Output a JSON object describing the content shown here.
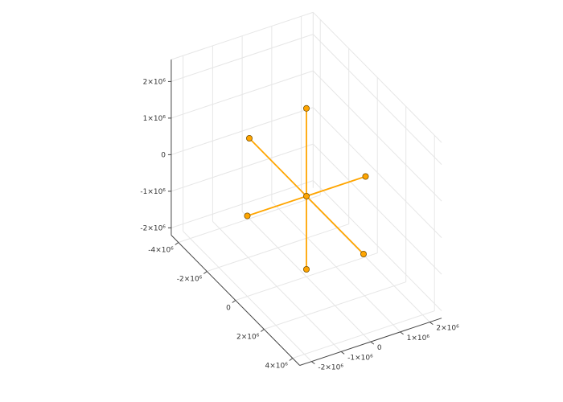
{
  "chart_data": {
    "type": "scatter3d",
    "title": "",
    "marker_color": "#FFA500",
    "line_color": "#FFA500",
    "marker_edge_color": "#7a5200",
    "grid": true,
    "axes": {
      "x": {
        "ticks": [
          -4000000,
          -2000000,
          0,
          2000000,
          4000000
        ],
        "tick_labels": [
          "-4×10⁶",
          "-2×10⁶",
          "0",
          "2×10⁶",
          "4×10⁶"
        ]
      },
      "y": {
        "ticks": [
          -2000000,
          -1000000,
          0,
          1000000,
          2000000
        ],
        "tick_labels": [
          "-2×10⁶",
          "-1×10⁶",
          "0",
          "1×10⁶",
          "2×10⁶"
        ]
      },
      "z": {
        "ticks": [
          -2000000,
          -1000000,
          0,
          1000000,
          2000000
        ],
        "tick_labels": [
          "-2×10⁶",
          "-1×10⁶",
          "0",
          "1×10⁶",
          "2×10⁶"
        ]
      }
    },
    "points": [
      {
        "x": 0,
        "y": 0,
        "z": 0
      },
      {
        "x": 0,
        "y": 0,
        "z": 2400000
      },
      {
        "x": 0,
        "y": 0,
        "z": -2000000
      },
      {
        "x": 4000000,
        "y": 0,
        "z": 0
      },
      {
        "x": -4000000,
        "y": 0,
        "z": 0
      },
      {
        "x": 0,
        "y": 2000000,
        "z": 0
      },
      {
        "x": 0,
        "y": -2000000,
        "z": 0
      }
    ],
    "segments": [
      [
        1,
        2
      ],
      [
        3,
        4
      ],
      [
        5,
        6
      ]
    ]
  }
}
